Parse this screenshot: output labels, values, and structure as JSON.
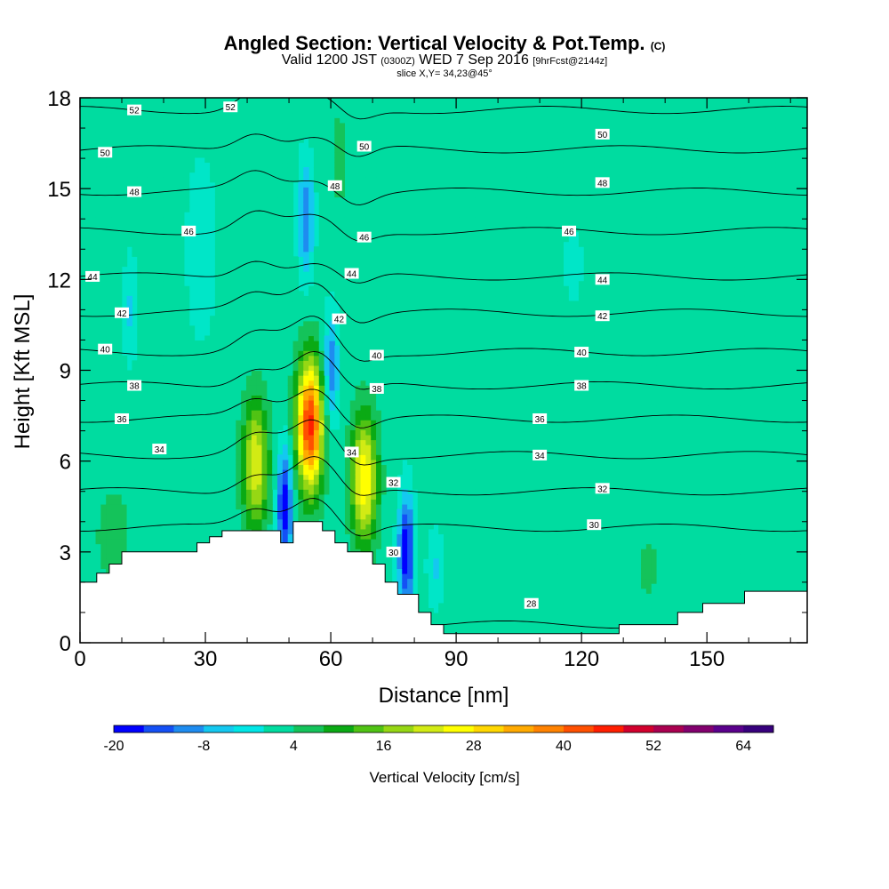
{
  "title": {
    "main": "Angled Section: Vertical Velocity & Pot.Temp.",
    "unit_tag": "(C)",
    "valid_prefix": "Valid 1200 JST",
    "valid_zulu": "(0300Z)",
    "valid_date": "WED 7 Sep 2016",
    "forecast": "[9hrFcst@2144z]",
    "slice": "slice X,Y= 34,23@45°"
  },
  "chart_data": {
    "type": "heatmap",
    "xlabel": "Distance [nm]",
    "ylabel": "Height [Kft MSL]",
    "xlim": [
      0,
      174
    ],
    "ylim": [
      0,
      18
    ],
    "x_ticks": [
      "0",
      "30",
      "60",
      "90",
      "120",
      "150"
    ],
    "x_tick_values": [
      0,
      30,
      60,
      90,
      120,
      150
    ],
    "y_ticks": [
      "0",
      "3",
      "6",
      "9",
      "12",
      "15",
      "18"
    ],
    "y_tick_values": [
      0,
      3,
      6,
      9,
      12,
      15,
      18
    ],
    "colorbar": {
      "label": "Vertical Velocity [cm/s]",
      "min": -20,
      "max": 68,
      "step": 4,
      "tick_labels": [
        "-20",
        "-8",
        "4",
        "16",
        "28",
        "40",
        "52",
        "64"
      ],
      "tick_values": [
        -20,
        -8,
        4,
        16,
        28,
        40,
        52,
        64
      ],
      "colors": [
        "#0000ff",
        "#1450f5",
        "#1e8cf0",
        "#14c8f0",
        "#00e6e6",
        "#00dca0",
        "#14c35a",
        "#0aaa14",
        "#50c314",
        "#96d714",
        "#d2eb14",
        "#ffff00",
        "#ffd700",
        "#ffaa00",
        "#ff8200",
        "#ff5000",
        "#ff1e00",
        "#d2002d",
        "#aa0050",
        "#82006e",
        "#5a008c",
        "#37007d"
      ]
    },
    "terrain_kft": [
      [
        0,
        2
      ],
      [
        4,
        2
      ],
      [
        4,
        2.3
      ],
      [
        7,
        2.3
      ],
      [
        7,
        2.6
      ],
      [
        10,
        2.6
      ],
      [
        10,
        3.0
      ],
      [
        28,
        3.0
      ],
      [
        28,
        3.3
      ],
      [
        31,
        3.3
      ],
      [
        31,
        3.5
      ],
      [
        34,
        3.5
      ],
      [
        34,
        3.7
      ],
      [
        48,
        3.7
      ],
      [
        48,
        3.3
      ],
      [
        51,
        3.3
      ],
      [
        51,
        4.0
      ],
      [
        58,
        4.0
      ],
      [
        58,
        3.7
      ],
      [
        61,
        3.7
      ],
      [
        61,
        3.3
      ],
      [
        64,
        3.3
      ],
      [
        64,
        3.0
      ],
      [
        70,
        3.0
      ],
      [
        70,
        2.6
      ],
      [
        73,
        2.6
      ],
      [
        73,
        2.0
      ],
      [
        76,
        2.0
      ],
      [
        76,
        1.6
      ],
      [
        81,
        1.6
      ],
      [
        81,
        1.0
      ],
      [
        84,
        1.0
      ],
      [
        84,
        0.6
      ],
      [
        87,
        0.6
      ],
      [
        87,
        0.3
      ],
      [
        129,
        0.3
      ],
      [
        129,
        0.6
      ],
      [
        143,
        0.6
      ],
      [
        143,
        1.0
      ],
      [
        149,
        1.0
      ],
      [
        149,
        1.3
      ],
      [
        159,
        1.3
      ],
      [
        159,
        1.7
      ],
      [
        174,
        1.7
      ]
    ],
    "theta_contours_c": [
      {
        "value": 28,
        "base_kft": 0.6
      },
      {
        "value": 30,
        "base_kft": 3.8
      },
      {
        "value": 32,
        "base_kft": 5.0
      },
      {
        "value": 34,
        "base_kft": 6.2
      },
      {
        "value": 36,
        "base_kft": 7.4
      },
      {
        "value": 38,
        "base_kft": 8.5
      },
      {
        "value": 40,
        "base_kft": 9.6
      },
      {
        "value": 42,
        "base_kft": 10.9
      },
      {
        "value": 44,
        "base_kft": 12.1
      },
      {
        "value": 46,
        "base_kft": 13.6
      },
      {
        "value": 48,
        "base_kft": 14.9
      },
      {
        "value": 50,
        "base_kft": 16.3
      },
      {
        "value": 52,
        "base_kft": 17.6
      }
    ],
    "contour_labels": [
      {
        "text": "52",
        "x": 13,
        "y": 17.6
      },
      {
        "text": "52",
        "x": 36,
        "y": 17.7
      },
      {
        "text": "50",
        "x": 6,
        "y": 16.2
      },
      {
        "text": "50",
        "x": 68,
        "y": 16.4
      },
      {
        "text": "50",
        "x": 125,
        "y": 16.8
      },
      {
        "text": "48",
        "x": 13,
        "y": 14.9
      },
      {
        "text": "48",
        "x": 61,
        "y": 15.1
      },
      {
        "text": "48",
        "x": 125,
        "y": 15.2
      },
      {
        "text": "46",
        "x": 26,
        "y": 13.6
      },
      {
        "text": "46",
        "x": 68,
        "y": 13.4
      },
      {
        "text": "46",
        "x": 117,
        "y": 13.6
      },
      {
        "text": "44",
        "x": 3,
        "y": 12.1
      },
      {
        "text": "44",
        "x": 65,
        "y": 12.2
      },
      {
        "text": "44",
        "x": 125,
        "y": 12.0
      },
      {
        "text": "42",
        "x": 10,
        "y": 10.9
      },
      {
        "text": "42",
        "x": 62,
        "y": 10.7
      },
      {
        "text": "42",
        "x": 125,
        "y": 10.8
      },
      {
        "text": "40",
        "x": 6,
        "y": 9.7
      },
      {
        "text": "40",
        "x": 71,
        "y": 9.5
      },
      {
        "text": "40",
        "x": 120,
        "y": 9.6
      },
      {
        "text": "38",
        "x": 13,
        "y": 8.5
      },
      {
        "text": "38",
        "x": 71,
        "y": 8.4
      },
      {
        "text": "38",
        "x": 120,
        "y": 8.5
      },
      {
        "text": "36",
        "x": 10,
        "y": 7.4
      },
      {
        "text": "36",
        "x": 110,
        "y": 7.4
      },
      {
        "text": "34",
        "x": 19,
        "y": 6.4
      },
      {
        "text": "34",
        "x": 65,
        "y": 6.3
      },
      {
        "text": "34",
        "x": 110,
        "y": 6.2
      },
      {
        "text": "32",
        "x": 75,
        "y": 5.3
      },
      {
        "text": "32",
        "x": 125,
        "y": 5.1
      },
      {
        "text": "30",
        "x": 75,
        "y": 3.0
      },
      {
        "text": "30",
        "x": 123,
        "y": 3.9
      },
      {
        "text": "28",
        "x": 108,
        "y": 1.3
      }
    ],
    "velocity_features_cm_s": [
      {
        "kind": "updraft",
        "x": 55,
        "z": 7.2,
        "peak": 46
      },
      {
        "kind": "updraft",
        "x": 68,
        "z": 5.4,
        "peak": 28
      },
      {
        "kind": "updraft",
        "x": 42,
        "z": 5.9,
        "peak": 24
      },
      {
        "kind": "downdraft",
        "x": 49,
        "z": 4.5,
        "peak": -20
      },
      {
        "kind": "downdraft",
        "x": 78,
        "z": 3.0,
        "peak": -20
      },
      {
        "kind": "downdraft",
        "x": 54,
        "z": 14.0,
        "peak": -12
      },
      {
        "kind": "downdraft",
        "x": 60,
        "z": 9.0,
        "peak": -12
      }
    ]
  }
}
